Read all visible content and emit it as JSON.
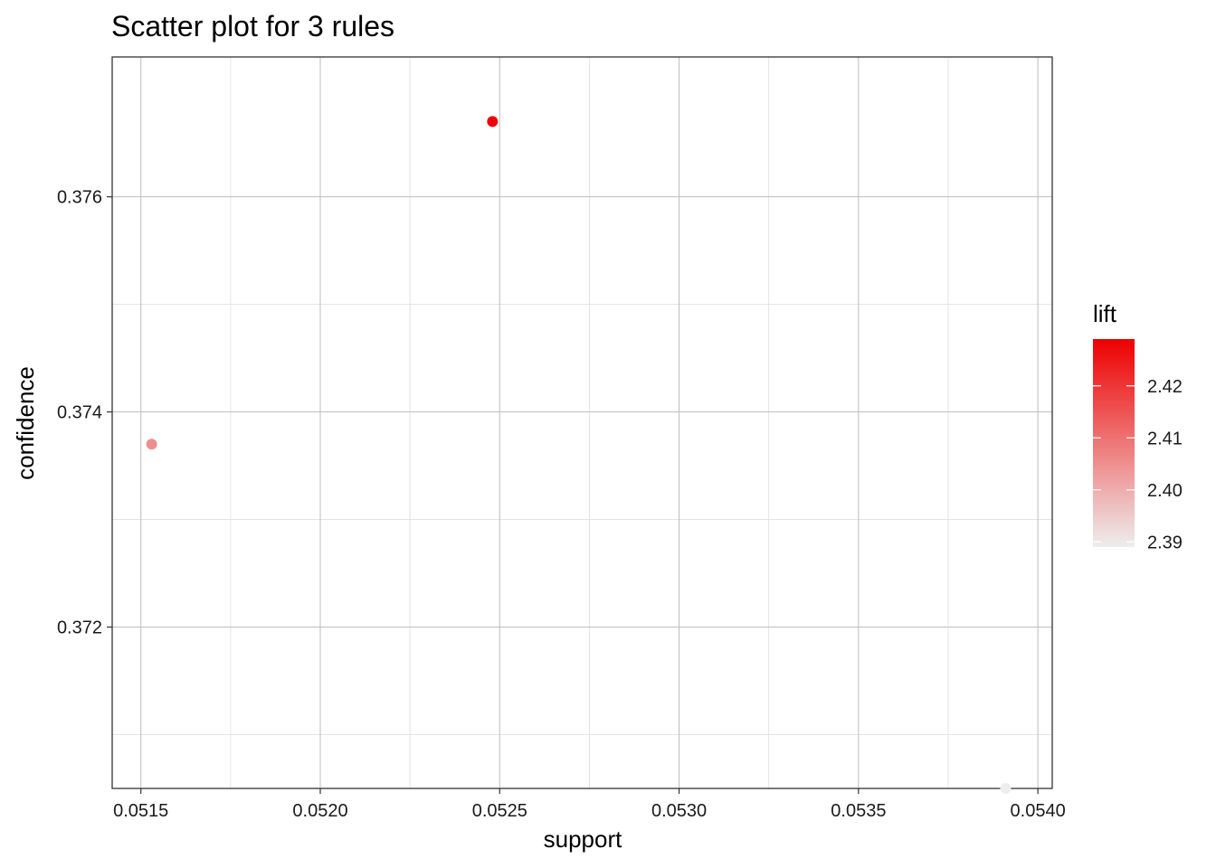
{
  "chart_data": {
    "type": "scatter",
    "title": "Scatter plot for 3 rules",
    "xlabel": "support",
    "ylabel": "confidence",
    "xlim": [
      0.05142,
      0.05404
    ],
    "ylim": [
      0.3705,
      0.3773
    ],
    "x_ticks": [
      0.0515,
      0.052,
      0.0525,
      0.053,
      0.0535,
      0.054
    ],
    "x_tick_labels": [
      "0.0515",
      "0.0520",
      "0.0525",
      "0.0530",
      "0.0535",
      "0.0540"
    ],
    "x_minor_ticks": [
      0.05175,
      0.05225,
      0.05275,
      0.05325,
      0.05375
    ],
    "y_ticks": [
      0.372,
      0.374,
      0.376
    ],
    "y_tick_labels": [
      "0.372",
      "0.374",
      "0.376"
    ],
    "y_minor_ticks": [
      0.371,
      0.373,
      0.375
    ],
    "grid": true,
    "points": [
      {
        "support": 0.05153,
        "confidence": 0.3737,
        "lift": 2.405
      },
      {
        "support": 0.05248,
        "confidence": 0.3767,
        "lift": 2.429
      },
      {
        "support": 0.05391,
        "confidence": 0.3705,
        "lift": 2.389
      }
    ],
    "color_scale": {
      "name": "lift",
      "min": 2.389,
      "max": 2.429,
      "low_color": "#eeeeee",
      "high_color": "#ee0000",
      "ticks": [
        2.39,
        2.4,
        2.41,
        2.42
      ],
      "tick_labels": [
        "2.39",
        "2.40",
        "2.41",
        "2.42"
      ]
    },
    "legend_position": "right"
  }
}
